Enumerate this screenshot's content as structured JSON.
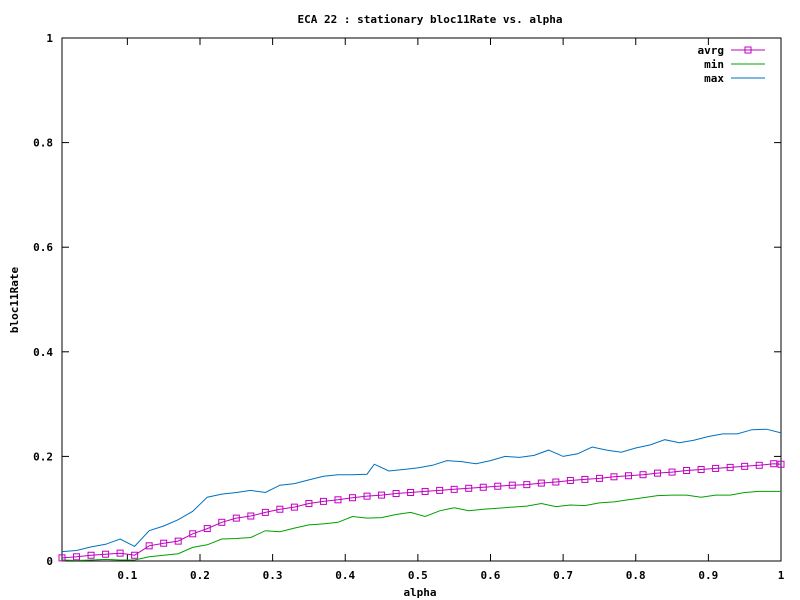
{
  "chart_data": {
    "type": "line",
    "title": "ECA 22 : stationary bloc11Rate vs. alpha",
    "xlabel": "alpha",
    "ylabel": "bloc11Rate",
    "xlim": [
      0.01,
      1.0
    ],
    "ylim": [
      0,
      1
    ],
    "x_ticks": [
      {
        "value": 0.1,
        "label": "0.1"
      },
      {
        "value": 0.2,
        "label": "0.2"
      },
      {
        "value": 0.3,
        "label": "0.3"
      },
      {
        "value": 0.4,
        "label": "0.4"
      },
      {
        "value": 0.5,
        "label": "0.5"
      },
      {
        "value": 0.6,
        "label": "0.6"
      },
      {
        "value": 0.7,
        "label": "0.7"
      },
      {
        "value": 0.8,
        "label": "0.8"
      },
      {
        "value": 0.9,
        "label": "0.9"
      },
      {
        "value": 1.0,
        "label": "1"
      }
    ],
    "y_ticks": [
      {
        "value": 0,
        "label": "0"
      },
      {
        "value": 0.2,
        "label": "0.2"
      },
      {
        "value": 0.4,
        "label": "0.4"
      },
      {
        "value": 0.6,
        "label": "0.6"
      },
      {
        "value": 0.8,
        "label": "0.8"
      },
      {
        "value": 1,
        "label": "1"
      }
    ],
    "grid": false,
    "legend_position": "top-right",
    "series": [
      {
        "name": "avrg",
        "color": "#c000c0",
        "marker": "square",
        "points": [
          [
            0.01,
            0.006
          ],
          [
            0.03,
            0.008
          ],
          [
            0.05,
            0.011
          ],
          [
            0.07,
            0.013
          ],
          [
            0.09,
            0.015
          ],
          [
            0.11,
            0.011
          ],
          [
            0.13,
            0.029
          ],
          [
            0.15,
            0.034
          ],
          [
            0.17,
            0.038
          ],
          [
            0.19,
            0.052
          ],
          [
            0.21,
            0.062
          ],
          [
            0.23,
            0.074
          ],
          [
            0.25,
            0.082
          ],
          [
            0.27,
            0.086
          ],
          [
            0.29,
            0.093
          ],
          [
            0.31,
            0.099
          ],
          [
            0.33,
            0.103
          ],
          [
            0.35,
            0.11
          ],
          [
            0.37,
            0.114
          ],
          [
            0.39,
            0.117
          ],
          [
            0.41,
            0.121
          ],
          [
            0.43,
            0.124
          ],
          [
            0.45,
            0.126
          ],
          [
            0.47,
            0.129
          ],
          [
            0.49,
            0.131
          ],
          [
            0.51,
            0.133
          ],
          [
            0.53,
            0.135
          ],
          [
            0.55,
            0.137
          ],
          [
            0.57,
            0.139
          ],
          [
            0.59,
            0.141
          ],
          [
            0.61,
            0.143
          ],
          [
            0.63,
            0.145
          ],
          [
            0.65,
            0.146
          ],
          [
            0.67,
            0.149
          ],
          [
            0.69,
            0.151
          ],
          [
            0.71,
            0.154
          ],
          [
            0.73,
            0.156
          ],
          [
            0.75,
            0.158
          ],
          [
            0.77,
            0.161
          ],
          [
            0.79,
            0.163
          ],
          [
            0.81,
            0.165
          ],
          [
            0.83,
            0.168
          ],
          [
            0.85,
            0.17
          ],
          [
            0.87,
            0.173
          ],
          [
            0.89,
            0.175
          ],
          [
            0.91,
            0.177
          ],
          [
            0.93,
            0.179
          ],
          [
            0.95,
            0.181
          ],
          [
            0.97,
            0.183
          ],
          [
            0.99,
            0.186
          ],
          [
            1.0,
            0.185
          ]
        ]
      },
      {
        "name": "min",
        "color": "#00a000",
        "marker": "none",
        "points": [
          [
            0.01,
            0.002
          ],
          [
            0.03,
            0.001
          ],
          [
            0.05,
            0.002
          ],
          [
            0.07,
            0.003
          ],
          [
            0.09,
            0.002
          ],
          [
            0.11,
            0.002
          ],
          [
            0.13,
            0.008
          ],
          [
            0.15,
            0.011
          ],
          [
            0.17,
            0.014
          ],
          [
            0.19,
            0.026
          ],
          [
            0.21,
            0.031
          ],
          [
            0.23,
            0.042
          ],
          [
            0.25,
            0.043
          ],
          [
            0.27,
            0.045
          ],
          [
            0.29,
            0.058
          ],
          [
            0.31,
            0.056
          ],
          [
            0.33,
            0.063
          ],
          [
            0.35,
            0.069
          ],
          [
            0.37,
            0.071
          ],
          [
            0.39,
            0.074
          ],
          [
            0.41,
            0.085
          ],
          [
            0.43,
            0.082
          ],
          [
            0.45,
            0.083
          ],
          [
            0.47,
            0.089
          ],
          [
            0.49,
            0.093
          ],
          [
            0.51,
            0.085
          ],
          [
            0.53,
            0.096
          ],
          [
            0.55,
            0.102
          ],
          [
            0.57,
            0.096
          ],
          [
            0.59,
            0.099
          ],
          [
            0.61,
            0.101
          ],
          [
            0.63,
            0.103
          ],
          [
            0.65,
            0.105
          ],
          [
            0.67,
            0.11
          ],
          [
            0.69,
            0.104
          ],
          [
            0.71,
            0.107
          ],
          [
            0.73,
            0.106
          ],
          [
            0.75,
            0.111
          ],
          [
            0.77,
            0.113
          ],
          [
            0.79,
            0.117
          ],
          [
            0.81,
            0.121
          ],
          [
            0.83,
            0.125
          ],
          [
            0.85,
            0.126
          ],
          [
            0.87,
            0.126
          ],
          [
            0.89,
            0.122
          ],
          [
            0.91,
            0.126
          ],
          [
            0.93,
            0.126
          ],
          [
            0.95,
            0.131
          ],
          [
            0.97,
            0.133
          ],
          [
            0.99,
            0.133
          ],
          [
            1.0,
            0.133
          ]
        ]
      },
      {
        "name": "max",
        "color": "#0070c0",
        "marker": "none",
        "points": [
          [
            0.01,
            0.018
          ],
          [
            0.03,
            0.02
          ],
          [
            0.05,
            0.027
          ],
          [
            0.07,
            0.032
          ],
          [
            0.09,
            0.042
          ],
          [
            0.11,
            0.028
          ],
          [
            0.13,
            0.058
          ],
          [
            0.15,
            0.067
          ],
          [
            0.17,
            0.079
          ],
          [
            0.19,
            0.095
          ],
          [
            0.21,
            0.122
          ],
          [
            0.23,
            0.128
          ],
          [
            0.25,
            0.131
          ],
          [
            0.27,
            0.135
          ],
          [
            0.29,
            0.131
          ],
          [
            0.31,
            0.145
          ],
          [
            0.33,
            0.148
          ],
          [
            0.35,
            0.155
          ],
          [
            0.37,
            0.162
          ],
          [
            0.39,
            0.165
          ],
          [
            0.41,
            0.165
          ],
          [
            0.43,
            0.166
          ],
          [
            0.44,
            0.185
          ],
          [
            0.46,
            0.172
          ],
          [
            0.48,
            0.175
          ],
          [
            0.5,
            0.178
          ],
          [
            0.52,
            0.183
          ],
          [
            0.54,
            0.192
          ],
          [
            0.56,
            0.19
          ],
          [
            0.58,
            0.186
          ],
          [
            0.6,
            0.192
          ],
          [
            0.62,
            0.2
          ],
          [
            0.64,
            0.198
          ],
          [
            0.66,
            0.202
          ],
          [
            0.68,
            0.212
          ],
          [
            0.7,
            0.2
          ],
          [
            0.72,
            0.205
          ],
          [
            0.74,
            0.218
          ],
          [
            0.76,
            0.212
          ],
          [
            0.78,
            0.208
          ],
          [
            0.8,
            0.216
          ],
          [
            0.82,
            0.222
          ],
          [
            0.84,
            0.232
          ],
          [
            0.86,
            0.226
          ],
          [
            0.88,
            0.231
          ],
          [
            0.9,
            0.238
          ],
          [
            0.92,
            0.243
          ],
          [
            0.94,
            0.243
          ],
          [
            0.96,
            0.251
          ],
          [
            0.98,
            0.252
          ],
          [
            1.0,
            0.245
          ]
        ]
      }
    ]
  }
}
